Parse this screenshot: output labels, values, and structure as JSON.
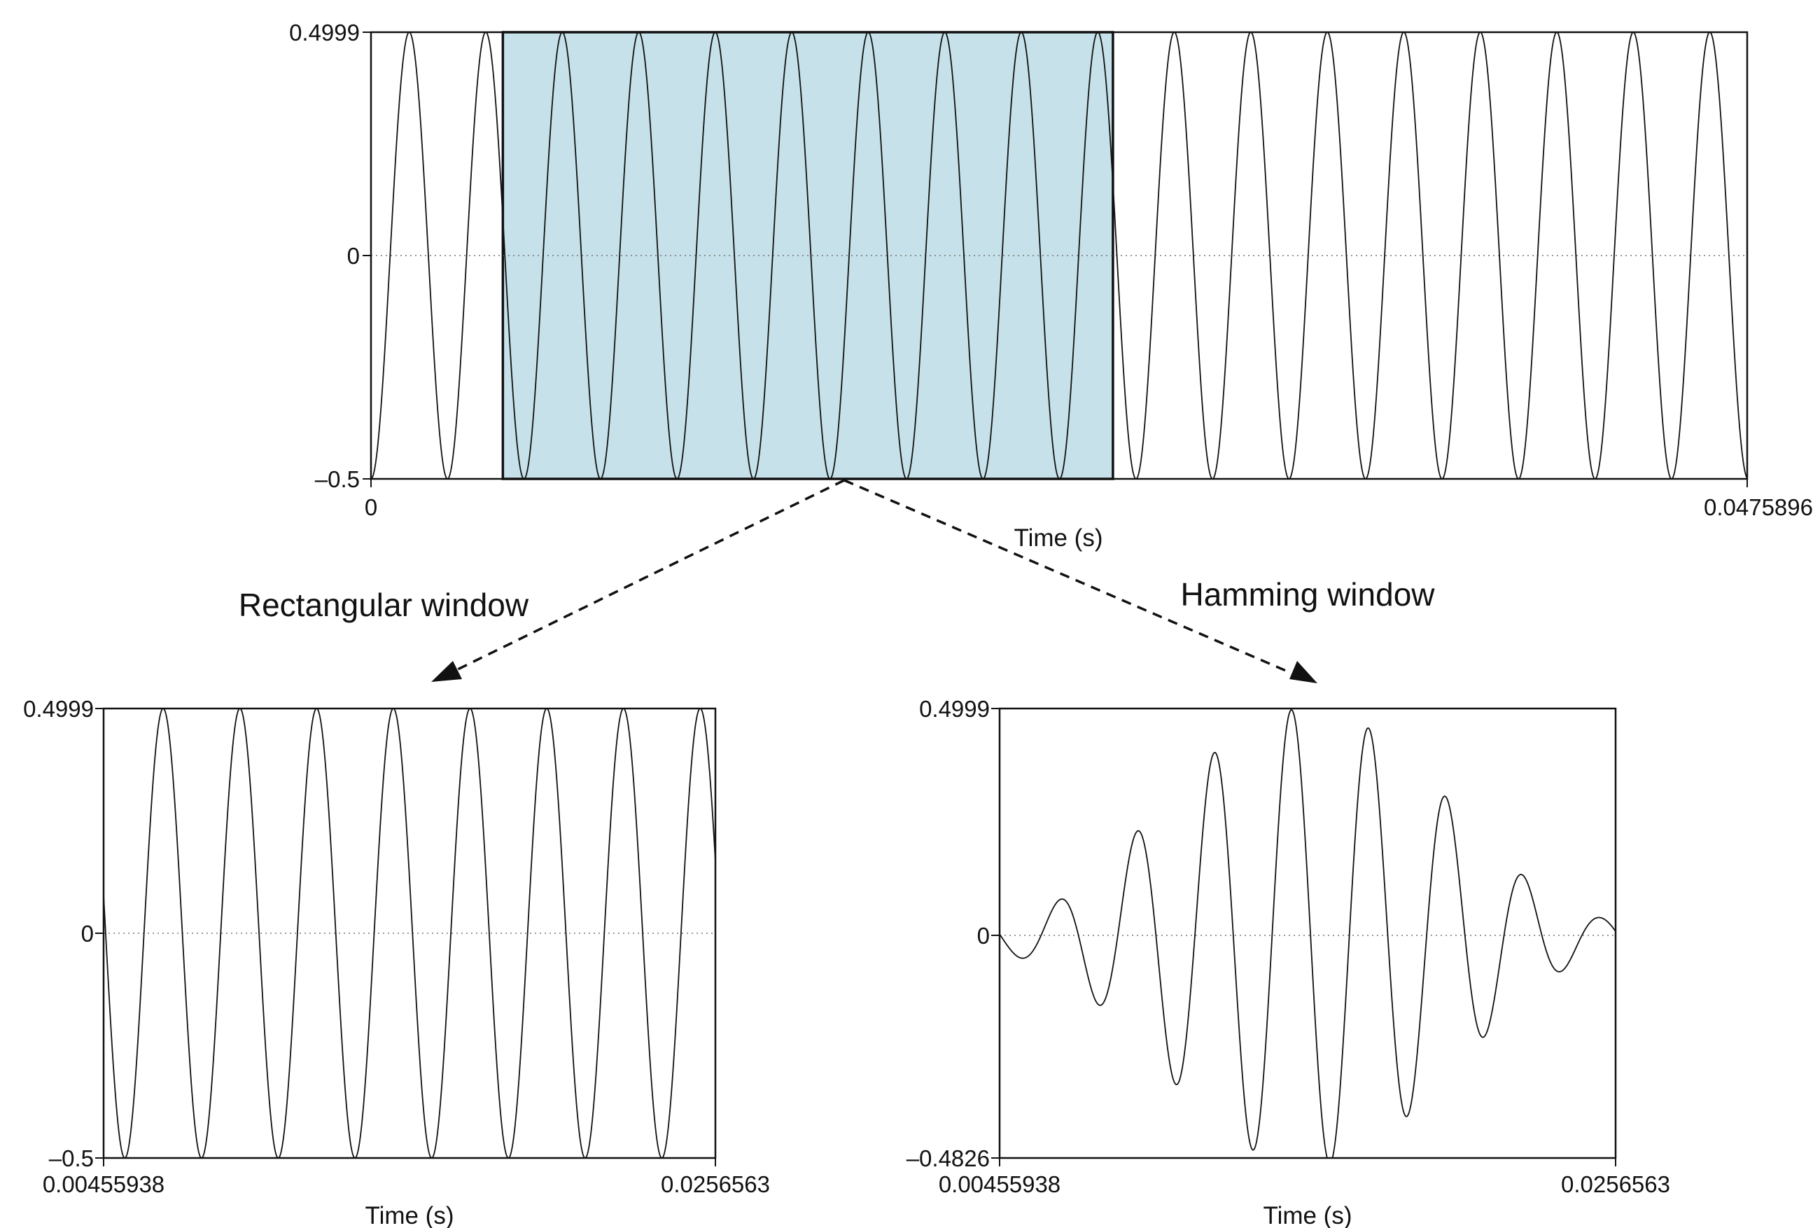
{
  "annotations": {
    "left_caption": "Rectangular window",
    "right_caption": "Hamming window"
  },
  "colors": {
    "selection_fill": "#c6e1e9",
    "line": "#111111",
    "zero_line": "#777777"
  },
  "chart_data": [
    {
      "id": "full_signal",
      "type": "line",
      "title": "",
      "xlabel": "Time (s)",
      "ylabel": "",
      "xlim": [
        0,
        0.0475896
      ],
      "ylim": [
        -0.5,
        0.4999
      ],
      "x_tick_labels": [
        "0",
        "0.0475896"
      ],
      "y_tick_labels": [
        "0.4999",
        "0",
        "–0.5"
      ],
      "zero_line": "dotted",
      "signal": {
        "waveform": "cosine",
        "amplitude": 0.5,
        "frequency_hz": 378,
        "phase_cycles": -0.5
      },
      "highlighted_region": [
        0.00455938,
        0.0256563
      ]
    },
    {
      "id": "rectangular_window",
      "type": "line",
      "title": "",
      "xlabel": "Time (s)",
      "ylabel": "",
      "xlim": [
        0.00455938,
        0.0256563
      ],
      "ylim": [
        -0.5,
        0.4999
      ],
      "x_tick_labels": [
        "0.00455938",
        "0.0256563"
      ],
      "y_tick_labels": [
        "0.4999",
        "0",
        "–0.5"
      ],
      "zero_line": "dotted",
      "window": "rectangular",
      "signal": {
        "waveform": "cosine",
        "amplitude": 0.5,
        "frequency_hz": 378,
        "phase_cycles": -0.5
      }
    },
    {
      "id": "hamming_window",
      "type": "line",
      "title": "",
      "xlabel": "Time (s)",
      "ylabel": "",
      "xlim": [
        0.00455938,
        0.0256563
      ],
      "ylim": [
        -0.4826,
        0.4999
      ],
      "x_tick_labels": [
        "0.00455938",
        "0.0256563"
      ],
      "y_tick_labels": [
        "0.4999",
        "0",
        "–0.4826"
      ],
      "zero_line": "dotted",
      "window": "hamming",
      "signal": {
        "waveform": "cosine",
        "amplitude": 0.5,
        "frequency_hz": 378,
        "phase_cycles": -0.5
      }
    }
  ]
}
